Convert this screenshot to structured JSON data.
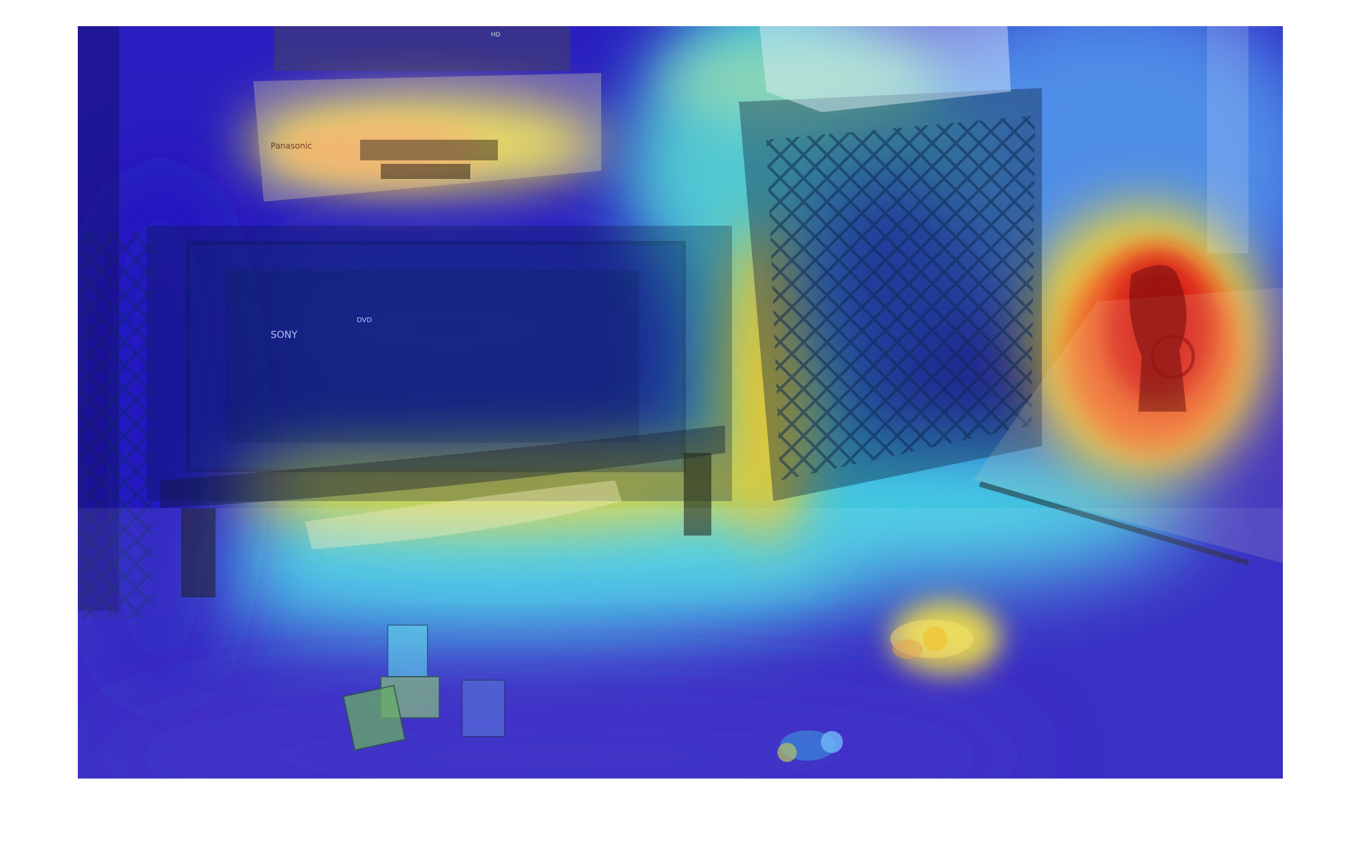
{
  "figure": {
    "kind": "heatmap-overlay-photo",
    "colormap": "jet",
    "colormap_stops": [
      "#1a10c8",
      "#2a55e8",
      "#3fd0e8",
      "#e8e040",
      "#f08a2a",
      "#d81818"
    ]
  },
  "scene": {
    "objects": [
      {
        "name": "dvd-player-icon",
        "label": "DVD player"
      },
      {
        "name": "vcr-icon",
        "label": "VCR"
      },
      {
        "name": "tv-cabinet-icon",
        "label": "TV cabinet"
      },
      {
        "name": "xbox-console-icon",
        "label": "game console"
      },
      {
        "name": "speaker-icon",
        "label": "speaker"
      },
      {
        "name": "horse-head-bookend-icon",
        "label": "horse head figurine"
      },
      {
        "name": "toy-blocks-icon",
        "label": "toy blocks"
      },
      {
        "name": "bee-toy-icon",
        "label": "bee toy"
      },
      {
        "name": "rattle-toy-icon",
        "label": "rattle toy"
      },
      {
        "name": "balance-board-icon",
        "label": "balance board"
      }
    ]
  },
  "photo_text": {
    "vcr_brand": "Panasonic",
    "dvd_brand": "SONY",
    "dvd_logo": "DVD",
    "top_device_logo": "HD"
  }
}
